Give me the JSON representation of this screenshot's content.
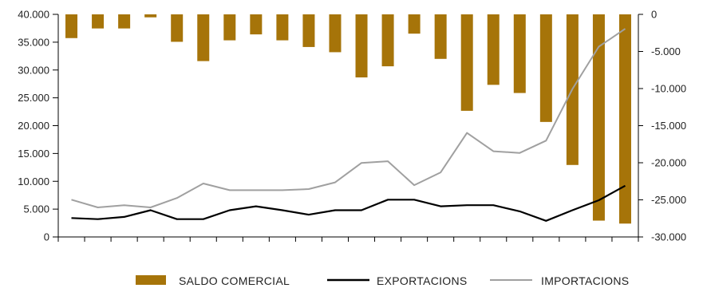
{
  "chart_data": {
    "type": "bar",
    "categories": [
      "",
      "",
      "",
      "",
      "",
      "",
      "",
      "",
      "",
      "",
      "",
      "",
      "",
      "",
      "",
      "",
      "",
      "",
      "",
      "",
      "",
      ""
    ],
    "left_axis": {
      "ylim": [
        0,
        40000
      ],
      "ticks": [
        "0",
        "5.000",
        "10.000",
        "15.000",
        "20.000",
        "25.000",
        "30.000",
        "35.000",
        "40.000"
      ],
      "tick_values": [
        0,
        5000,
        10000,
        15000,
        20000,
        25000,
        30000,
        35000,
        40000
      ]
    },
    "right_axis": {
      "ylim": [
        -30000,
        0
      ],
      "ticks": [
        "0",
        "-5.000",
        "-10.000",
        "-15.000",
        "-20.000",
        "-25.000",
        "-30.000"
      ],
      "tick_values": [
        0,
        -5000,
        -10000,
        -15000,
        -20000,
        -25000,
        -30000
      ]
    },
    "series": [
      {
        "name": "SALDO COMERCIAL",
        "type": "bar",
        "axis": "right",
        "color": "#a67409",
        "values": [
          -3200,
          -1900,
          -1900,
          -400,
          -3700,
          -6300,
          -3500,
          -2700,
          -3500,
          -4400,
          -5100,
          -8500,
          -7000,
          -2600,
          -6000,
          -13000,
          -9500,
          -10600,
          -14500,
          -20300,
          -27800,
          -28200
        ]
      },
      {
        "name": "EXPORTACIONS",
        "type": "line",
        "axis": "left",
        "color": "#000000",
        "values": [
          3400,
          3200,
          3600,
          4800,
          3200,
          3200,
          4800,
          5500,
          4800,
          4000,
          4800,
          4800,
          6700,
          6700,
          5500,
          5700,
          5700,
          4600,
          2900,
          4800,
          6600,
          9200
        ]
      },
      {
        "name": "IMPORTACIONS",
        "type": "line",
        "axis": "left",
        "color": "#a0a0a0",
        "values": [
          6700,
          5300,
          5700,
          5300,
          7000,
          9600,
          8400,
          8400,
          8400,
          8600,
          9800,
          13300,
          13600,
          9300,
          11600,
          18700,
          15400,
          15100,
          17300,
          26600,
          34200,
          37400
        ]
      }
    ],
    "legend": {
      "position": "bottom"
    },
    "grid": false
  }
}
